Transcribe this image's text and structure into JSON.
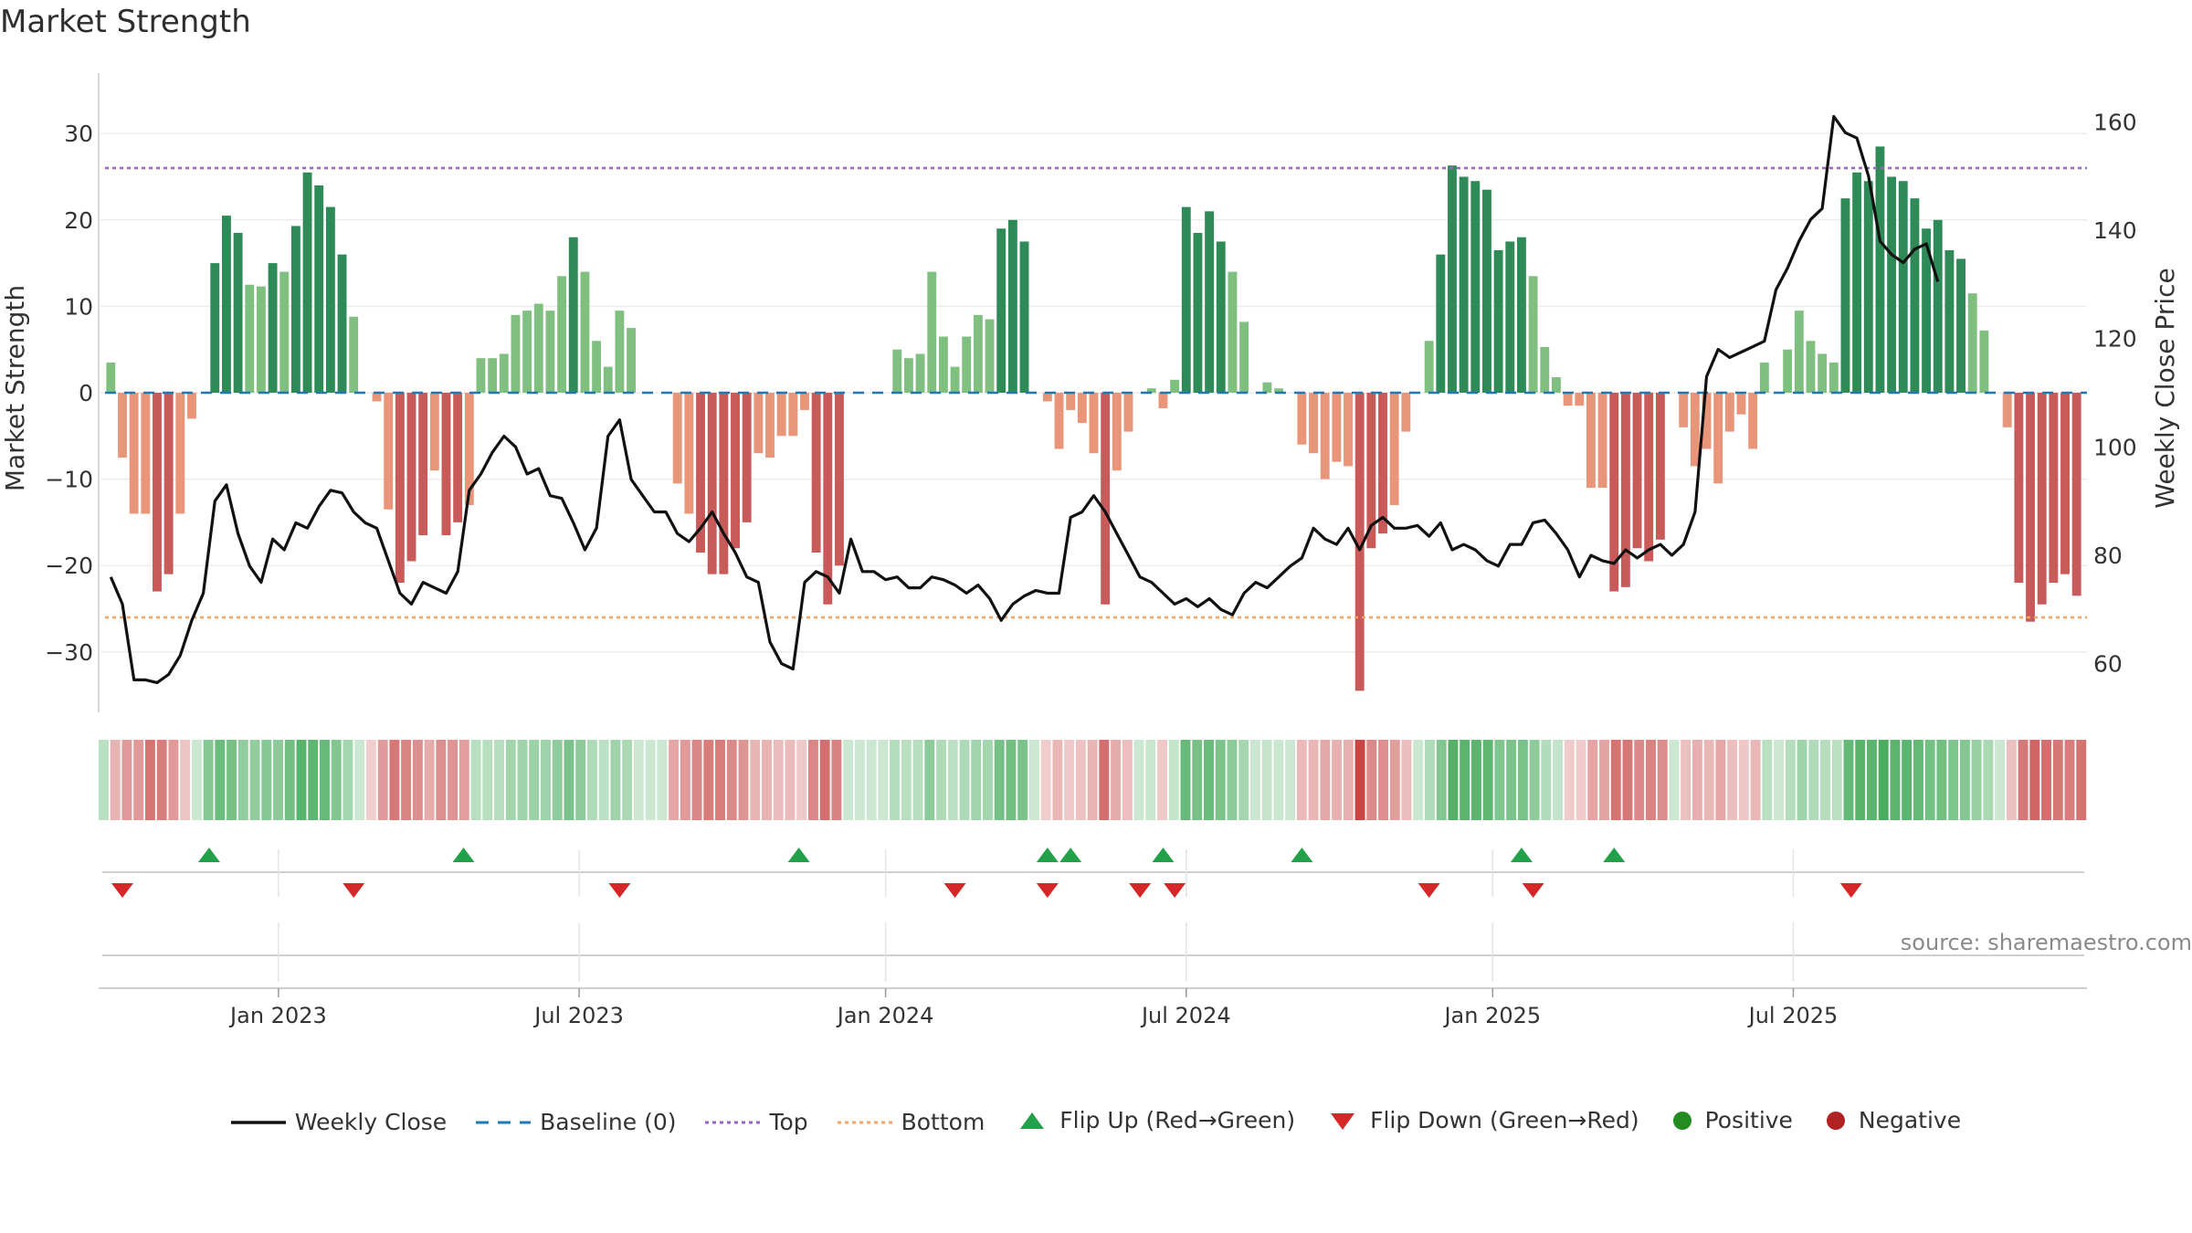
{
  "title": "Market Strength",
  "source": "source: sharemaestro.com",
  "legend": {
    "weekly_close": "Weekly Close",
    "baseline": "Baseline (0)",
    "top": "Top",
    "bottom": "Bottom",
    "flip_up": "Flip Up (Red→Green)",
    "flip_down": "Flip Down (Green→Red)",
    "positive": "Positive",
    "negative": "Negative"
  },
  "colors": {
    "dark_green": "#2e8b57",
    "light_green": "#7fbf7f",
    "dark_red": "#c85a5a",
    "light_red": "#e8957a",
    "close_line": "#111111",
    "baseline": "#1f77b4",
    "top": "#9467bd",
    "bottom": "#f4a261",
    "flip_up": "#22a04a",
    "flip_down": "#d62728",
    "positive": "#228b22",
    "negative": "#b22222"
  },
  "chart_data": {
    "type": "bar",
    "title": "Market Strength",
    "xlabel": "",
    "ylabel": "Market Strength",
    "y2label": "Weekly Close Price",
    "ylim": [
      -37,
      37
    ],
    "y2lim": [
      51,
      169
    ],
    "yticks": [
      30,
      20,
      10,
      0,
      -10,
      -20,
      -30
    ],
    "y2ticks": [
      160,
      140,
      120,
      100,
      80,
      60
    ],
    "top_line": 26,
    "bottom_line": -26,
    "week_range": [
      0,
      157
    ],
    "date_ticks": [
      {
        "label": "Jan 2023",
        "week": 14.5
      },
      {
        "label": "Jul 2023",
        "week": 40.5
      },
      {
        "label": "Jan 2024",
        "week": 67
      },
      {
        "label": "Jul 2024",
        "week": 93
      },
      {
        "label": "Jan 2025",
        "week": 119.5
      },
      {
        "label": "Jul 2025",
        "week": 145.5
      }
    ],
    "strength": [
      3.5,
      -7.5,
      -14,
      -14,
      -23,
      -21,
      -14,
      -3,
      0,
      15,
      20.5,
      18.5,
      12.5,
      12.3,
      15,
      14,
      19.3,
      25.5,
      24,
      21.5,
      16,
      8.8,
      0,
      -1,
      -13.5,
      -22,
      -19.5,
      -16.5,
      -9,
      -16.5,
      -15,
      -13,
      4,
      4,
      4.5,
      9,
      9.5,
      10.3,
      9.5,
      13.5,
      18,
      14,
      6,
      3,
      9.5,
      7.5,
      0,
      0,
      0,
      -10.5,
      -14,
      -18.5,
      -21,
      -21,
      -18,
      -15,
      -7,
      -7.5,
      -5,
      -5,
      -2,
      -18.5,
      -24.5,
      -20,
      0,
      0,
      0,
      0,
      5,
      4,
      4.5,
      14,
      6.5,
      3,
      6.5,
      9,
      8.5,
      19,
      20,
      17.5,
      0,
      -1,
      -6.5,
      -2,
      -3.5,
      -7,
      -24.5,
      -9,
      -4.5,
      0,
      0.5,
      -1.8,
      1.5,
      21.5,
      18.5,
      21,
      17.5,
      14,
      8.2,
      0,
      1.2,
      0.5,
      0,
      -6,
      -7,
      -10,
      -8,
      -8.5,
      -34.5,
      -18,
      -16.3,
      -13,
      -4.5,
      0,
      6,
      16,
      26.3,
      25,
      24.5,
      23.5,
      16.5,
      17.5,
      18,
      13.5,
      5.3,
      1.8,
      -1.5,
      -1.5,
      -11,
      -11,
      -23,
      -22.5,
      -18,
      -19.5,
      -17,
      0,
      -4,
      -8.5,
      -6.5,
      -10.5,
      -4.5,
      -2.5,
      -6.5,
      3.5,
      0,
      5,
      9.5,
      6,
      4.5,
      3.5,
      22.5,
      25.5,
      24.5,
      28.5,
      25,
      24.5,
      22.5,
      19,
      20,
      16.5,
      15.5,
      11.5,
      7.2,
      0,
      -4,
      -22,
      -26.5,
      -24.5,
      -22,
      -21,
      -23.5
    ],
    "close": [
      76,
      71,
      57,
      57,
      56.5,
      58,
      61.5,
      68,
      73,
      90,
      93,
      84,
      78,
      75,
      83,
      81,
      86,
      85,
      89,
      92,
      91.5,
      88,
      86,
      85,
      79,
      73,
      71,
      75,
      74,
      73,
      77,
      92,
      95,
      99,
      102,
      100,
      95,
      96,
      91,
      90.5,
      86,
      81,
      85,
      102,
      105,
      94,
      91,
      88,
      88,
      84,
      82.5,
      85,
      88,
      84,
      80.5,
      76,
      75,
      64,
      60,
      59,
      75,
      77,
      76,
      73,
      83,
      77,
      77,
      75.5,
      76,
      74,
      74,
      76,
      75.5,
      74.5,
      73,
      74.5,
      72,
      68,
      71,
      72.5,
      73.5,
      73,
      73,
      87,
      88,
      91,
      88,
      84,
      80,
      76,
      75,
      73,
      71,
      72,
      70.5,
      72,
      70,
      69,
      73,
      75,
      74,
      76,
      78,
      79.5,
      85,
      83,
      82,
      85,
      81,
      85.5,
      87,
      85,
      85,
      85.5,
      83.5,
      86,
      81,
      82,
      81,
      79,
      78,
      82,
      82,
      86,
      86.5,
      84,
      81,
      76,
      80,
      79,
      78.5,
      81,
      79.5,
      81,
      82,
      80,
      82,
      88,
      113,
      118,
      116.5,
      117.5,
      118.5,
      119.5,
      129,
      133,
      138,
      142,
      144,
      161,
      158,
      157,
      150,
      138,
      135.5,
      134,
      136.5,
      137.5,
      130.5
    ],
    "flip_up_weeks": [
      8.5,
      30.5,
      59.5,
      81,
      83,
      91,
      103,
      122,
      130
    ],
    "flip_down_weeks": [
      1,
      21,
      44,
      73,
      81,
      89,
      92,
      114,
      123,
      150.5
    ]
  }
}
